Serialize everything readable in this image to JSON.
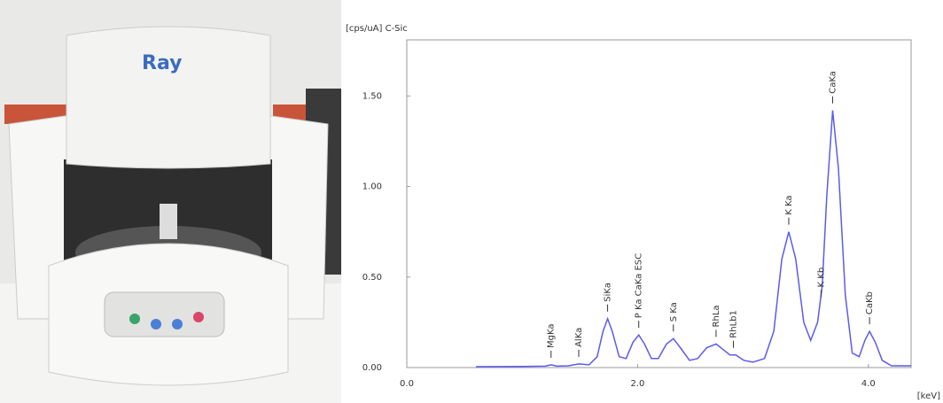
{
  "chart_data": {
    "type": "line",
    "y_label": "[cps/uA] C-Sic",
    "x_label": "[keV]",
    "xlim": [
      0,
      4.37
    ],
    "ylim": [
      0,
      1.81
    ],
    "xticks": [
      {
        "value": 0,
        "label": "0.0"
      },
      {
        "value": 2,
        "label": "2.0"
      },
      {
        "value": 4,
        "label": "4.0"
      }
    ],
    "yticks": [
      {
        "value": 0,
        "label": "0.00"
      },
      {
        "value": 0.5,
        "label": "0.50"
      },
      {
        "value": 1,
        "label": "1.00"
      },
      {
        "value": 1.5,
        "label": "1.50"
      }
    ],
    "color": "#5b5bef",
    "x": [
      0.6,
      1.0,
      1.2,
      1.25,
      1.3,
      1.4,
      1.49,
      1.58,
      1.65,
      1.7,
      1.74,
      1.78,
      1.84,
      1.9,
      1.96,
      2.01,
      2.06,
      2.12,
      2.18,
      2.25,
      2.31,
      2.37,
      2.45,
      2.52,
      2.6,
      2.68,
      2.74,
      2.8,
      2.85,
      2.92,
      3.0,
      3.1,
      3.18,
      3.25,
      3.31,
      3.37,
      3.44,
      3.5,
      3.56,
      3.6,
      3.64,
      3.69,
      3.74,
      3.8,
      3.86,
      3.92,
      3.97,
      4.01,
      4.06,
      4.12,
      4.2,
      4.37
    ],
    "values": [
      0.005,
      0.006,
      0.008,
      0.015,
      0.008,
      0.01,
      0.02,
      0.015,
      0.06,
      0.2,
      0.27,
      0.2,
      0.06,
      0.05,
      0.14,
      0.18,
      0.13,
      0.05,
      0.05,
      0.13,
      0.16,
      0.11,
      0.04,
      0.05,
      0.11,
      0.13,
      0.1,
      0.07,
      0.07,
      0.04,
      0.03,
      0.05,
      0.2,
      0.6,
      0.75,
      0.6,
      0.25,
      0.15,
      0.25,
      0.45,
      0.95,
      1.42,
      1.1,
      0.4,
      0.08,
      0.06,
      0.15,
      0.2,
      0.14,
      0.04,
      0.01,
      0.01
    ],
    "annotations": [
      {
        "text": "MgKa",
        "x": 1.25,
        "y": 0.015
      },
      {
        "text": "AlKa",
        "x": 1.49,
        "y": 0.02
      },
      {
        "text": "SiKa",
        "x": 1.74,
        "y": 0.27
      },
      {
        "text": "P Ka CaKa ESC",
        "x": 2.01,
        "y": 0.18
      },
      {
        "text": "S Ka",
        "x": 2.31,
        "y": 0.16
      },
      {
        "text": "RhLa",
        "x": 2.68,
        "y": 0.13
      },
      {
        "text": "RhLb1",
        "x": 2.83,
        "y": 0.07
      },
      {
        "text": "K Ka",
        "x": 3.31,
        "y": 0.75
      },
      {
        "text": "K Kb",
        "x": 3.59,
        "y": 0.35
      },
      {
        "text": "CaKa",
        "x": 3.69,
        "y": 1.42
      },
      {
        "text": "CaKb",
        "x": 4.01,
        "y": 0.2
      }
    ]
  }
}
